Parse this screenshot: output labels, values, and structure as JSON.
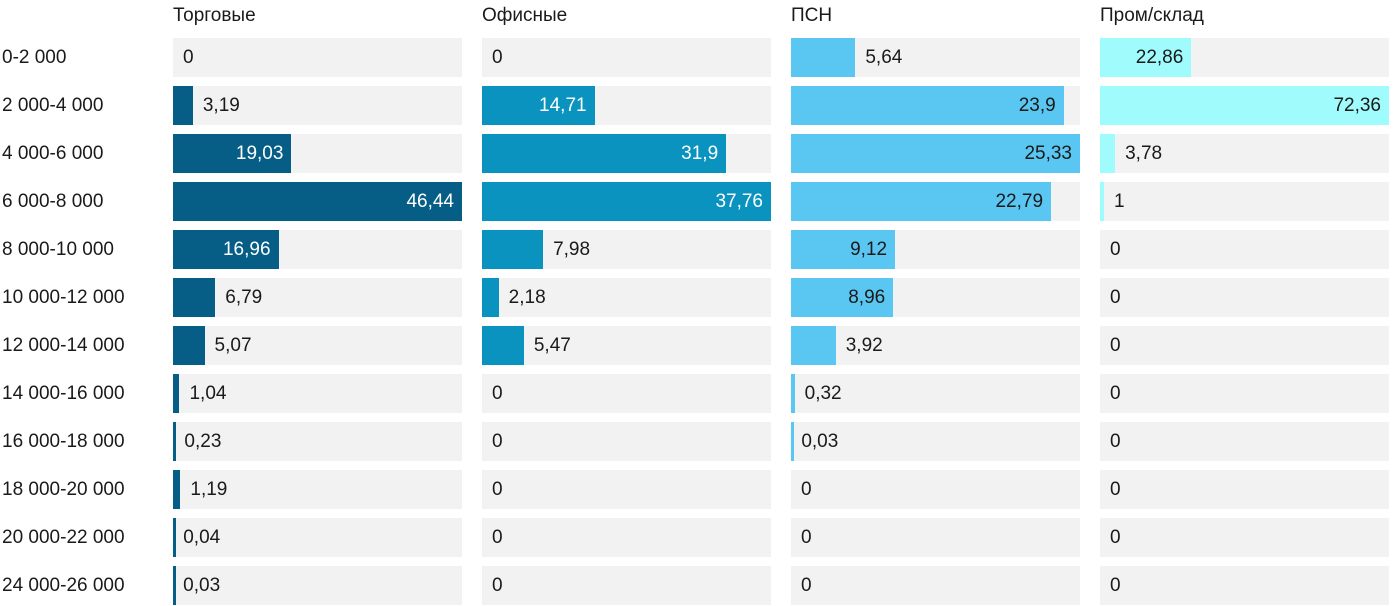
{
  "chart_data": {
    "type": "bar",
    "orientation": "horizontal",
    "layout": "small-multiples: 4 columns sharing one category axis, each column scaled to its own max",
    "grid": false,
    "track_color": "#f2f2f2",
    "text_color": "#1a1a1a",
    "categories": [
      "0-2 000",
      "2 000-4 000",
      "4 000-6 000",
      "6 000-8 000",
      "8 000-10 000",
      "10 000-12 000",
      "12 000-14 000",
      "14 000-16 000",
      "16 000-18 000",
      "18 000-20 000",
      "20 000-22 000",
      "24 000-26 000"
    ],
    "series": [
      {
        "name": "Торговые",
        "color": "#065e86",
        "inside_label_color": "#ffffff",
        "values": [
          0,
          3.19,
          19.03,
          46.44,
          16.96,
          6.79,
          5.07,
          1.04,
          0.23,
          1.19,
          0.04,
          0.03
        ],
        "labels": [
          "0",
          "3,19",
          "19,03",
          "46,44",
          "16,96",
          "6,79",
          "5,07",
          "1,04",
          "0,23",
          "1,19",
          "0,04",
          "0,03"
        ]
      },
      {
        "name": "Офисные",
        "color": "#0a93be",
        "inside_label_color": "#ffffff",
        "values": [
          0,
          14.71,
          31.9,
          37.76,
          7.98,
          2.18,
          5.47,
          0,
          0,
          0,
          0,
          0
        ],
        "labels": [
          "0",
          "14,71",
          "31,9",
          "37,76",
          "7,98",
          "2,18",
          "5,47",
          "0",
          "0",
          "0",
          "0",
          "0"
        ]
      },
      {
        "name": "ПСН",
        "color": "#5ac6f2",
        "inside_label_color": "#1a1a1a",
        "values": [
          5.64,
          23.9,
          25.33,
          22.79,
          9.12,
          8.96,
          3.92,
          0.32,
          0.03,
          0,
          0,
          0
        ],
        "labels": [
          "5,64",
          "23,9",
          "25,33",
          "22,79",
          "9,12",
          "8,96",
          "3,92",
          "0,32",
          "0,03",
          "0",
          "0",
          "0"
        ]
      },
      {
        "name": "Пром/склад",
        "color": "#a0fcfc",
        "inside_label_color": "#1a1a1a",
        "values": [
          22.86,
          72.36,
          3.78,
          1,
          0,
          0,
          0,
          0,
          0,
          0,
          0,
          0
        ],
        "labels": [
          "22,86",
          "72,36",
          "3,78",
          "1",
          "0",
          "0",
          "0",
          "0",
          "0",
          "0",
          "0",
          "0"
        ]
      }
    ]
  }
}
